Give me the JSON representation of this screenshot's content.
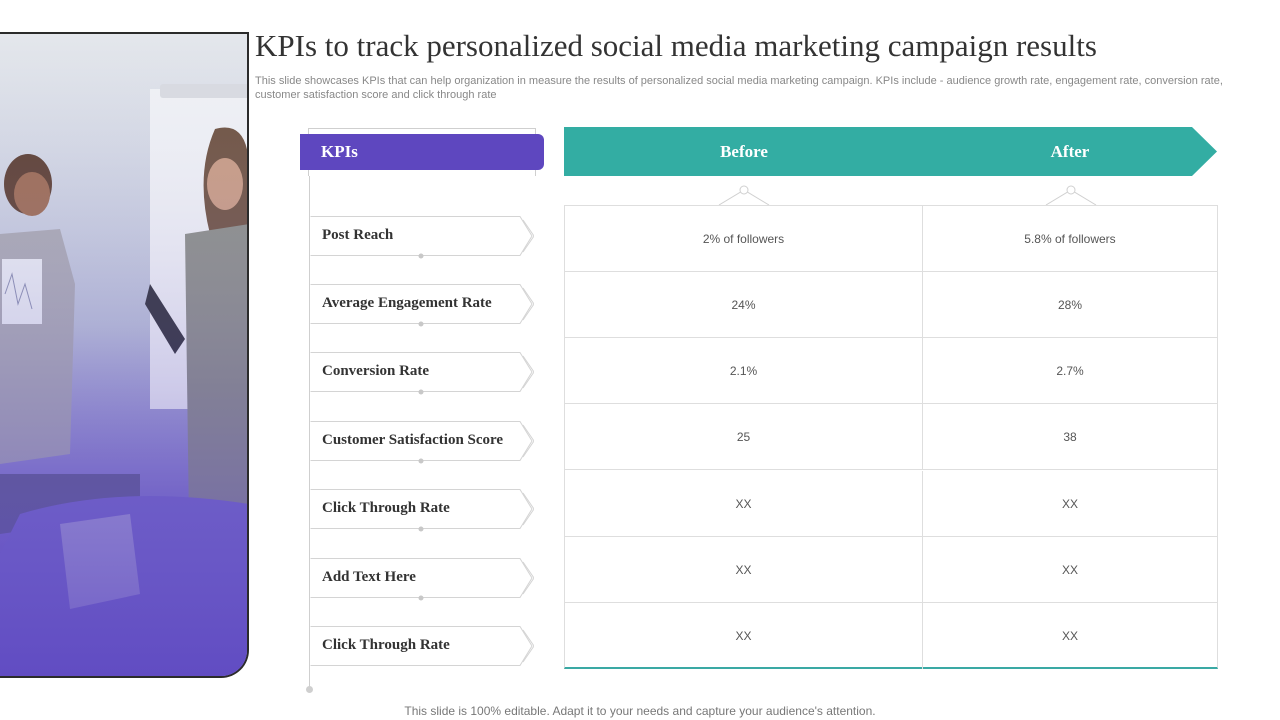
{
  "title": "KPIs to track personalized social media marketing campaign results",
  "subtitle": "This slide showcases KPIs that can help organization in measure the results of personalized social media marketing campaign. KPIs include - audience growth rate, engagement rate, conversion rate, customer satisfaction score and click through rate",
  "kpi_header": "KPIs",
  "columns": {
    "before": "Before",
    "after": "After"
  },
  "rows": [
    {
      "kpi": "Post Reach",
      "before": "2% of followers",
      "after": "5.8% of followers"
    },
    {
      "kpi": "Average Engagement Rate",
      "before": "24%",
      "after": "28%"
    },
    {
      "kpi": "Conversion Rate",
      "before": "2.1%",
      "after": "2.7%"
    },
    {
      "kpi": "Customer Satisfaction Score",
      "before": "25",
      "after": "38"
    },
    {
      "kpi": "Click Through  Rate",
      "before": "XX",
      "after": "XX"
    },
    {
      "kpi": "Add Text Here",
      "before": "XX",
      "after": "XX"
    },
    {
      "kpi": "Click Through  Rate",
      "before": "XX",
      "after": "XX"
    }
  ],
  "footer": "This slide is 100% editable. Adapt it to your needs and capture your audience's attention.",
  "colors": {
    "purple": "#5e47bf",
    "teal": "#33ada3"
  }
}
